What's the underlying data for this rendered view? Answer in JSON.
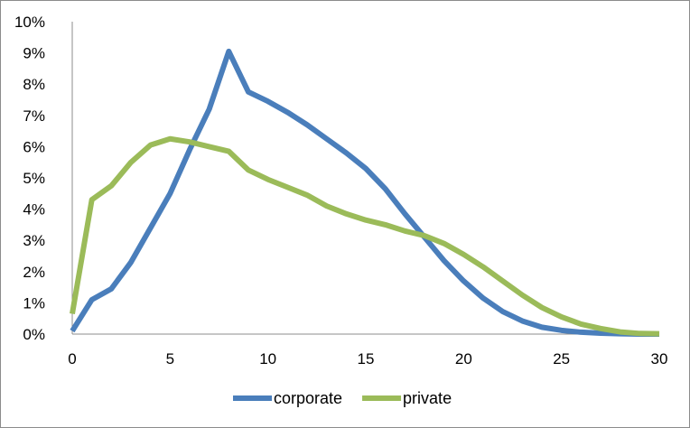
{
  "chart_data": {
    "type": "line",
    "x": [
      0,
      1,
      2,
      3,
      4,
      5,
      6,
      7,
      8,
      9,
      10,
      11,
      12,
      13,
      14,
      15,
      16,
      17,
      18,
      19,
      20,
      21,
      22,
      23,
      24,
      25,
      26,
      27,
      28,
      29,
      30
    ],
    "series": [
      {
        "name": "corporate",
        "color": "#4a7ebb",
        "values": [
          0.1,
          1.1,
          1.45,
          2.3,
          3.4,
          4.5,
          5.9,
          7.2,
          9.05,
          7.75,
          7.45,
          7.1,
          6.7,
          6.25,
          5.8,
          5.3,
          4.65,
          3.85,
          3.1,
          2.35,
          1.7,
          1.15,
          0.72,
          0.42,
          0.22,
          0.12,
          0.06,
          0.03,
          0.01,
          0.0,
          0.0
        ]
      },
      {
        "name": "private",
        "color": "#9bbb59",
        "values": [
          0.65,
          4.3,
          4.75,
          5.5,
          6.05,
          6.25,
          6.15,
          6.0,
          5.85,
          5.25,
          4.95,
          4.7,
          4.45,
          4.1,
          3.85,
          3.65,
          3.5,
          3.3,
          3.15,
          2.9,
          2.55,
          2.15,
          1.7,
          1.25,
          0.85,
          0.55,
          0.32,
          0.18,
          0.07,
          0.02,
          0.01
        ]
      }
    ],
    "x_ticks": [
      "0",
      "5",
      "10",
      "15",
      "20",
      "25",
      "30"
    ],
    "y_ticks": [
      "0%",
      "1%",
      "2%",
      "3%",
      "4%",
      "5%",
      "6%",
      "7%",
      "8%",
      "9%",
      "10%"
    ],
    "xlim": [
      0,
      30
    ],
    "ylim": [
      0,
      10
    ],
    "grid": false,
    "legend_position": "bottom",
    "title": "",
    "xlabel": "",
    "ylabel": ""
  }
}
